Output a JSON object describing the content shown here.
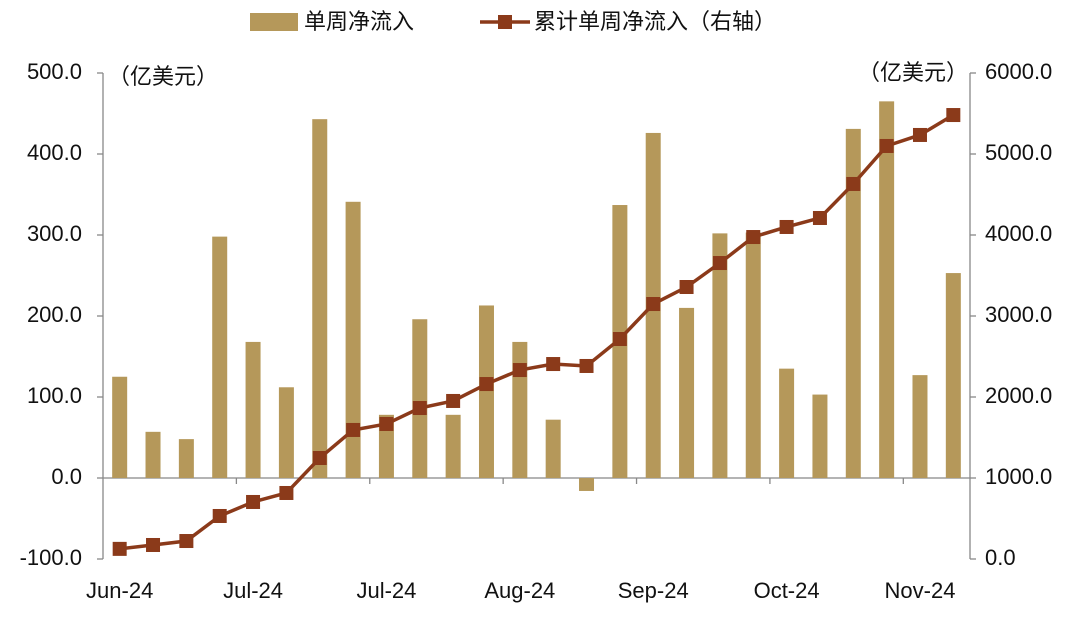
{
  "chart_data": {
    "type": "bar_line",
    "y_unit": "（亿美元）",
    "y2_unit": "（亿美元）",
    "categories": [
      "Jun-24",
      null,
      null,
      null,
      "Jul-24",
      null,
      null,
      null,
      "Jul-24",
      null,
      null,
      null,
      "Aug-24",
      null,
      null,
      null,
      "Sep-24",
      null,
      null,
      null,
      "Oct-24",
      null,
      null,
      null,
      "Nov-24",
      null
    ],
    "series": [
      {
        "name": "单周净流入",
        "type": "bar",
        "color": "#b5985a",
        "values": [
          125,
          57,
          48,
          298,
          168,
          112,
          443,
          341,
          78,
          196,
          78,
          213,
          168,
          72,
          -16,
          337,
          426,
          210,
          302,
          303,
          135,
          103,
          431,
          465,
          127,
          253
        ]
      },
      {
        "name": "累计单周净流入（右轴）",
        "type": "line",
        "axis": "y2",
        "color": "#8b3a1a",
        "values": [
          125,
          173,
          222,
          531,
          704,
          815,
          1247,
          1593,
          1667,
          1864,
          1951,
          2160,
          2333,
          2407,
          2383,
          2716,
          3148,
          3358,
          3654,
          3975,
          4099,
          4210,
          4630,
          5099,
          5235,
          5481
        ]
      }
    ],
    "ylim": [
      -100,
      500
    ],
    "yticks": [
      {
        "value": -100,
        "label": "-100.0"
      },
      {
        "value": 0,
        "label": "0.0"
      },
      {
        "value": 100,
        "label": "100.0"
      },
      {
        "value": 200,
        "label": "200.0"
      },
      {
        "value": 300,
        "label": "300.0"
      },
      {
        "value": 400,
        "label": "400.0"
      },
      {
        "value": 500,
        "label": "500.0"
      }
    ],
    "y2lim": [
      0,
      6000
    ],
    "y2ticks": [
      {
        "value": 0,
        "label": "0.0"
      },
      {
        "value": 1000,
        "label": "1000.0"
      },
      {
        "value": 2000,
        "label": "2000.0"
      },
      {
        "value": 3000,
        "label": "3000.0"
      },
      {
        "value": 4000,
        "label": "4000.0"
      },
      {
        "value": 5000,
        "label": "5000.0"
      },
      {
        "value": 6000,
        "label": "6000.0"
      }
    ],
    "grid": false
  }
}
